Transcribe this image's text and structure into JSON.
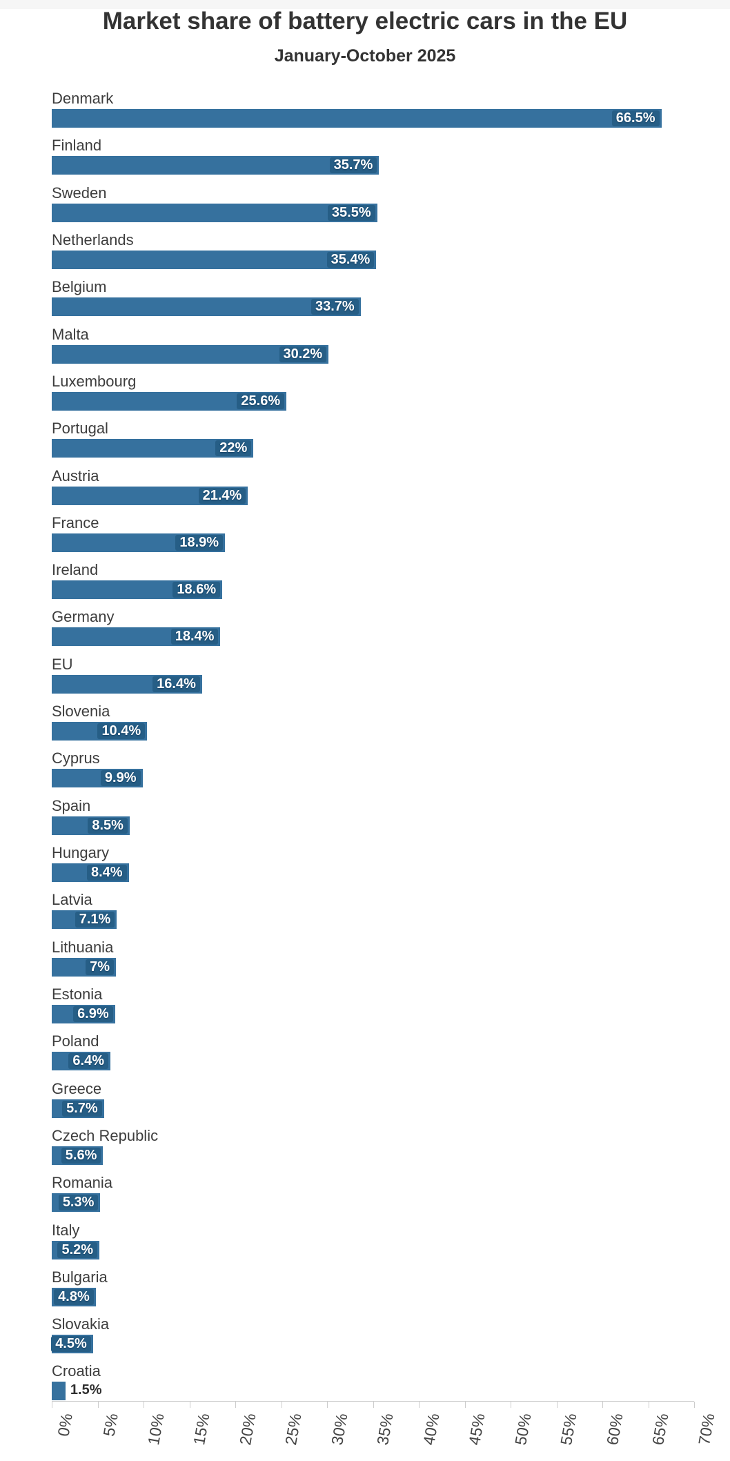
{
  "chart_data": {
    "type": "bar",
    "orientation": "horizontal",
    "title": "Market share of battery electric cars in the EU",
    "subtitle": "January-October 2025",
    "categories": [
      "Denmark",
      "Finland",
      "Sweden",
      "Netherlands",
      "Belgium",
      "Malta",
      "Luxembourg",
      "Portugal",
      "Austria",
      "France",
      "Ireland",
      "Germany",
      "EU",
      "Slovenia",
      "Cyprus",
      "Spain",
      "Hungary",
      "Latvia",
      "Lithuania",
      "Estonia",
      "Poland",
      "Greece",
      "Czech Republic",
      "Romania",
      "Italy",
      "Bulgaria",
      "Slovakia",
      "Croatia"
    ],
    "values": [
      66.5,
      35.7,
      35.5,
      35.4,
      33.7,
      30.2,
      25.6,
      22,
      21.4,
      18.9,
      18.6,
      18.4,
      16.4,
      10.4,
      9.9,
      8.5,
      8.4,
      7.1,
      7,
      6.9,
      6.4,
      5.7,
      5.6,
      5.3,
      5.2,
      4.8,
      4.5,
      1.5
    ],
    "value_labels": [
      "66.5%",
      "35.7%",
      "35.5%",
      "35.4%",
      "33.7%",
      "30.2%",
      "25.6%",
      "22%",
      "21.4%",
      "18.9%",
      "18.6%",
      "18.4%",
      "16.4%",
      "10.4%",
      "9.9%",
      "8.5%",
      "8.4%",
      "7.1%",
      "7%",
      "6.9%",
      "6.4%",
      "5.7%",
      "5.6%",
      "5.3%",
      "5.2%",
      "4.8%",
      "4.5%",
      "1.5%"
    ],
    "xlabel": "",
    "ylabel": "",
    "xlim": [
      0,
      70
    ],
    "x_ticks": [
      "0%",
      "5%",
      "10%",
      "15%",
      "20%",
      "25%",
      "30%",
      "35%",
      "40%",
      "45%",
      "50%",
      "55%",
      "60%",
      "65%",
      "70%"
    ],
    "grid": false,
    "legend": false,
    "colors": {
      "bar": "#36719e",
      "value_label_bg": "#265e86",
      "value_label_text": "#ffffff",
      "outside_label_text": "#2f2f2f",
      "category_label": "#3d3d3d",
      "title": "#333333",
      "axis_line": "#cccccc",
      "tick_label": "#444444",
      "top_strip": "#f6f6f6"
    }
  }
}
